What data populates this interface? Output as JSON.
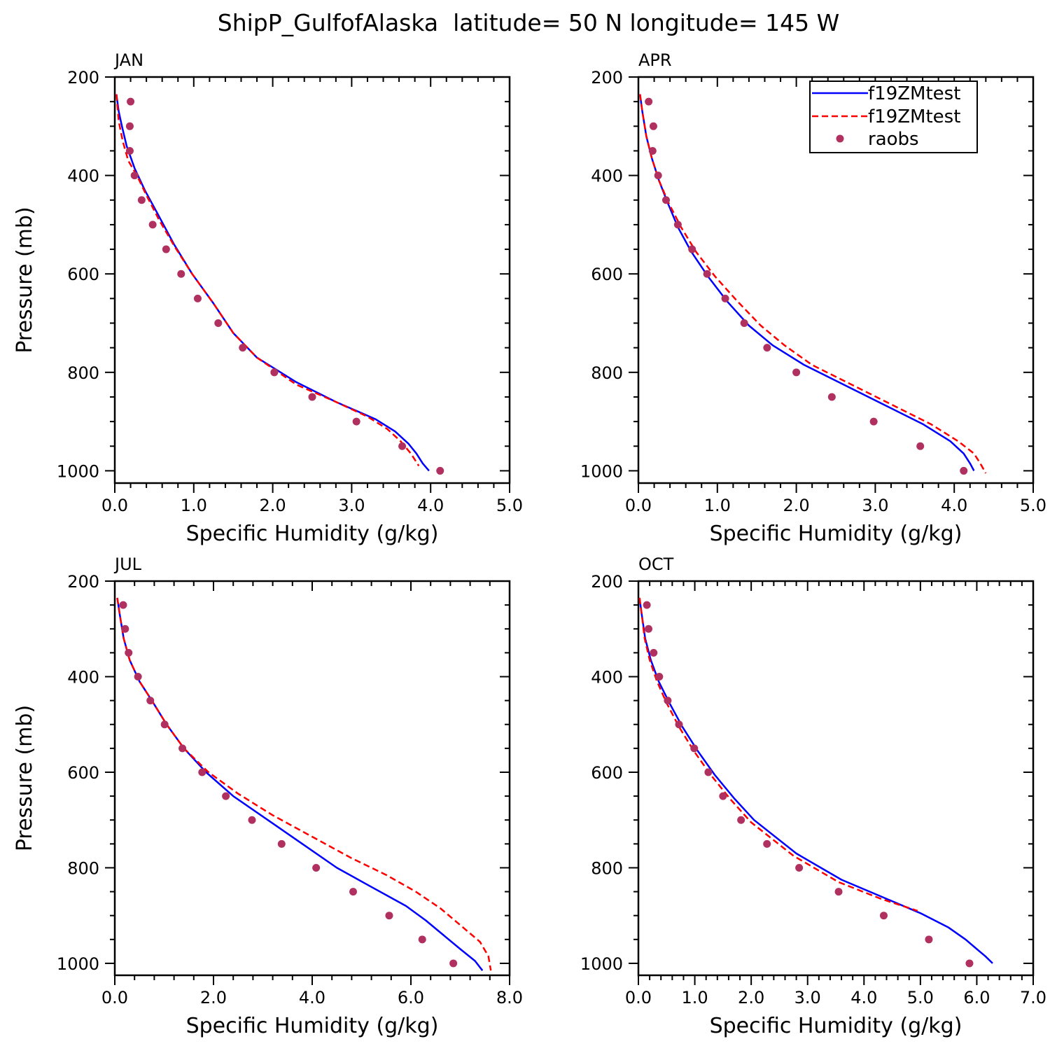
{
  "figure": {
    "title": "ShipP_GulfofAlaska  latitude= 50 N longitude= 145 W"
  },
  "legend": {
    "placement": "top-right of APR panel",
    "entries": [
      {
        "label": "f19ZMtest",
        "style": "solid",
        "color": "#0000ff"
      },
      {
        "label": "f19ZMtest",
        "style": "dashed",
        "color": "#ff0000"
      },
      {
        "label": "raobs",
        "style": "marker",
        "color": "#b03060"
      }
    ]
  },
  "colors": {
    "model_solid": "#0000ff",
    "model_dashed": "#ff0000",
    "raobs": "#b03060"
  },
  "chart_data": [
    {
      "type": "line",
      "panel_label": "JAN",
      "xlabel": "Specific Humidity (g/kg)",
      "ylabel": "Pressure (mb)",
      "xlim": [
        0,
        5
      ],
      "ylim": [
        200,
        1025
      ],
      "y_inverted": true,
      "xticks": [
        0,
        1,
        2,
        3,
        4,
        5
      ],
      "xtick_labels": [
        "0.0",
        "1.0",
        "2.0",
        "3.0",
        "4.0",
        "5.0"
      ],
      "yticks": [
        200,
        400,
        600,
        800,
        1000
      ],
      "ytick_labels": [
        "200",
        "400",
        "600",
        "800",
        "1000"
      ],
      "series": [
        {
          "style": "solid",
          "color": "#0000ff",
          "q": [
            0.02,
            0.05,
            0.09,
            0.15,
            0.25,
            0.38,
            0.55,
            0.75,
            0.98,
            1.25,
            1.5,
            1.8,
            2.3,
            2.8,
            3.3,
            3.55,
            3.72,
            3.82,
            3.9,
            3.98
          ],
          "p": [
            235,
            270,
            300,
            340,
            385,
            430,
            480,
            540,
            600,
            660,
            720,
            770,
            820,
            860,
            895,
            920,
            945,
            965,
            985,
            1000
          ]
        },
        {
          "style": "dashed",
          "color": "#ff0000",
          "q": [
            0.02,
            0.05,
            0.1,
            0.17,
            0.28,
            0.4,
            0.56,
            0.76,
            0.98,
            1.25,
            1.5,
            1.8,
            2.3,
            2.8,
            3.2,
            3.45,
            3.62,
            3.75,
            3.85
          ],
          "p": [
            235,
            290,
            330,
            370,
            400,
            440,
            490,
            545,
            600,
            660,
            720,
            770,
            825,
            860,
            890,
            915,
            940,
            965,
            990
          ]
        },
        {
          "style": "marker",
          "color": "#b03060",
          "q": [
            0.2,
            0.19,
            0.19,
            0.25,
            0.34,
            0.48,
            0.65,
            0.84,
            1.05,
            1.31,
            1.62,
            2.02,
            2.5,
            3.06,
            3.64,
            4.12
          ],
          "p": [
            250,
            300,
            350,
            400,
            450,
            500,
            550,
            600,
            650,
            700,
            750,
            800,
            850,
            900,
            950,
            1000
          ]
        }
      ]
    },
    {
      "type": "line",
      "panel_label": "APR",
      "xlabel": "Specific Humidity (g/kg)",
      "ylabel": "",
      "xlim": [
        0,
        5
      ],
      "ylim": [
        200,
        1025
      ],
      "y_inverted": true,
      "xticks": [
        0,
        1,
        2,
        3,
        4,
        5
      ],
      "xtick_labels": [
        "0.0",
        "1.0",
        "2.0",
        "3.0",
        "4.0",
        "5.0"
      ],
      "yticks": [
        200,
        400,
        600,
        800,
        1000
      ],
      "ytick_labels": [
        "200",
        "400",
        "600",
        "800",
        "1000"
      ],
      "series": [
        {
          "style": "solid",
          "color": "#0000ff",
          "q": [
            0.02,
            0.05,
            0.1,
            0.17,
            0.26,
            0.37,
            0.5,
            0.67,
            0.88,
            1.12,
            1.4,
            1.7,
            2.1,
            2.6,
            3.1,
            3.6,
            3.95,
            4.12,
            4.2,
            4.25
          ],
          "p": [
            235,
            270,
            320,
            365,
            410,
            455,
            505,
            555,
            605,
            655,
            705,
            745,
            785,
            825,
            865,
            905,
            940,
            965,
            985,
            1000
          ]
        },
        {
          "style": "dashed",
          "color": "#ff0000",
          "q": [
            0.02,
            0.05,
            0.1,
            0.17,
            0.26,
            0.38,
            0.54,
            0.73,
            0.97,
            1.25,
            1.55,
            1.85,
            2.2,
            2.7,
            3.2,
            3.7,
            4.05,
            4.25,
            4.33,
            4.4
          ],
          "p": [
            235,
            270,
            320,
            365,
            410,
            455,
            505,
            555,
            605,
            655,
            705,
            745,
            785,
            825,
            865,
            905,
            940,
            965,
            985,
            1005
          ]
        },
        {
          "style": "marker",
          "color": "#b03060",
          "q": [
            0.13,
            0.19,
            0.18,
            0.25,
            0.35,
            0.5,
            0.68,
            0.87,
            1.1,
            1.34,
            1.63,
            2.0,
            2.45,
            2.98,
            3.57,
            4.12
          ],
          "p": [
            250,
            300,
            350,
            400,
            450,
            500,
            550,
            600,
            650,
            700,
            750,
            800,
            850,
            900,
            950,
            1000
          ]
        }
      ]
    },
    {
      "type": "line",
      "panel_label": "JUL",
      "xlabel": "Specific Humidity (g/kg)",
      "ylabel": "Pressure (mb)",
      "xlim": [
        0,
        8
      ],
      "ylim": [
        200,
        1025
      ],
      "y_inverted": true,
      "xticks": [
        0,
        2,
        4,
        6,
        8
      ],
      "xtick_labels": [
        "0.0",
        "2.0",
        "4.0",
        "6.0",
        "8.0"
      ],
      "yticks": [
        200,
        400,
        600,
        800,
        1000
      ],
      "ytick_labels": [
        "200",
        "400",
        "600",
        "800",
        "1000"
      ],
      "series": [
        {
          "style": "solid",
          "color": "#0000ff",
          "q": [
            0.05,
            0.1,
            0.18,
            0.3,
            0.5,
            0.75,
            1.05,
            1.4,
            1.85,
            2.4,
            3.1,
            3.8,
            4.5,
            5.2,
            5.9,
            6.3,
            6.65,
            7.0,
            7.3,
            7.45
          ],
          "p": [
            235,
            270,
            320,
            365,
            410,
            450,
            500,
            550,
            600,
            650,
            700,
            750,
            800,
            840,
            880,
            910,
            940,
            970,
            995,
            1015
          ]
        },
        {
          "style": "dashed",
          "color": "#ff0000",
          "q": [
            0.05,
            0.1,
            0.18,
            0.3,
            0.5,
            0.75,
            1.05,
            1.4,
            1.9,
            2.5,
            3.2,
            4.0,
            4.8,
            5.5,
            6.1,
            6.6,
            7.0,
            7.4,
            7.57,
            7.62
          ],
          "p": [
            235,
            270,
            320,
            365,
            410,
            450,
            500,
            550,
            600,
            645,
            690,
            735,
            780,
            815,
            850,
            885,
            920,
            955,
            985,
            1015
          ]
        },
        {
          "style": "marker",
          "color": "#b03060",
          "q": [
            0.17,
            0.21,
            0.28,
            0.47,
            0.72,
            1.01,
            1.37,
            1.77,
            2.25,
            2.78,
            3.38,
            4.08,
            4.83,
            5.56,
            6.23,
            6.86
          ],
          "p": [
            250,
            300,
            350,
            400,
            450,
            500,
            550,
            600,
            650,
            700,
            750,
            800,
            850,
            900,
            950,
            1000
          ]
        }
      ]
    },
    {
      "type": "line",
      "panel_label": "OCT",
      "xlabel": "Specific Humidity (g/kg)",
      "ylabel": "",
      "xlim": [
        0,
        7
      ],
      "ylim": [
        200,
        1025
      ],
      "y_inverted": true,
      "xticks": [
        0,
        1,
        2,
        3,
        4,
        5,
        6,
        7
      ],
      "xtick_labels": [
        "0.0",
        "1.0",
        "2.0",
        "3.0",
        "4.0",
        "5.0",
        "6.0",
        "7.0"
      ],
      "yticks": [
        200,
        400,
        600,
        800,
        1000
      ],
      "ytick_labels": [
        "200",
        "400",
        "600",
        "800",
        "1000"
      ],
      "series": [
        {
          "style": "solid",
          "color": "#0000ff",
          "q": [
            0.02,
            0.06,
            0.12,
            0.22,
            0.36,
            0.55,
            0.78,
            1.05,
            1.35,
            1.7,
            2.05,
            2.8,
            3.6,
            4.3,
            5.0,
            5.5,
            5.8,
            6.0,
            6.15,
            6.28
          ],
          "p": [
            235,
            270,
            320,
            365,
            410,
            455,
            505,
            555,
            605,
            655,
            700,
            770,
            825,
            860,
            895,
            925,
            950,
            970,
            985,
            1000
          ]
        },
        {
          "style": "dashed",
          "color": "#ff0000",
          "q": [
            0.02,
            0.06,
            0.11,
            0.2,
            0.33,
            0.5,
            0.72,
            0.98,
            1.28,
            1.62,
            2.0,
            2.75,
            3.55,
            4.3,
            4.95
          ],
          "p": [
            235,
            270,
            320,
            365,
            410,
            455,
            505,
            555,
            605,
            655,
            705,
            775,
            830,
            865,
            890
          ]
        },
        {
          "style": "marker",
          "color": "#b03060",
          "q": [
            0.15,
            0.18,
            0.27,
            0.37,
            0.52,
            0.72,
            0.99,
            1.24,
            1.5,
            1.82,
            2.28,
            2.85,
            3.55,
            4.35,
            5.15,
            5.87
          ],
          "p": [
            250,
            300,
            350,
            400,
            450,
            500,
            550,
            600,
            650,
            700,
            750,
            800,
            850,
            900,
            950,
            1000
          ]
        }
      ]
    }
  ]
}
